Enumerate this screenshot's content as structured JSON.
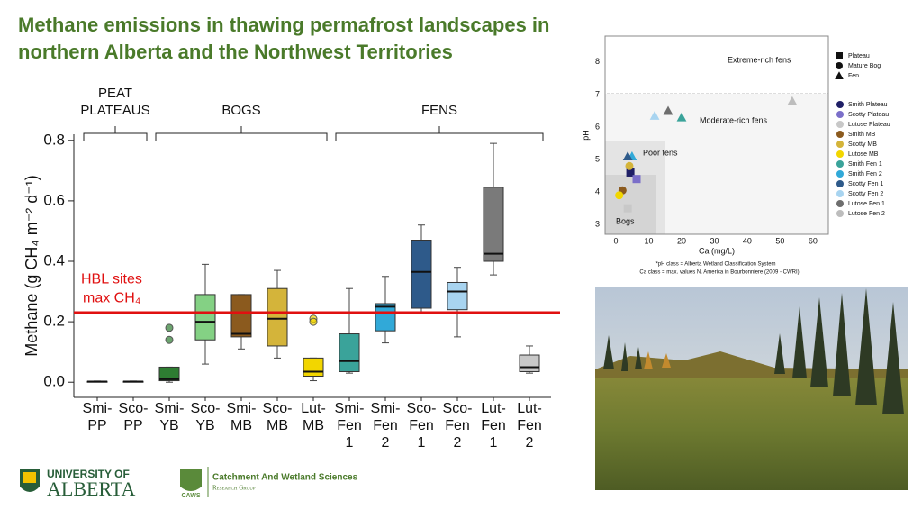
{
  "title": [
    "Methane emissions in thawing permafrost landscapes in",
    "northern Alberta and the Northwest Territories"
  ],
  "chart_data": [
    {
      "type": "box",
      "y_label": "Methane (g CH₄ m⁻² d⁻¹)",
      "categories": [
        [
          "Smi-",
          "PP"
        ],
        [
          "Sco-",
          "PP"
        ],
        [
          "Smi-",
          "YB"
        ],
        [
          "Sco-",
          "YB"
        ],
        [
          "Smi-",
          "MB"
        ],
        [
          "Sco-",
          "MB"
        ],
        [
          "Lut-",
          "MB"
        ],
        [
          "Smi-",
          "Fen",
          "1"
        ],
        [
          "Smi-",
          "Fen",
          "2"
        ],
        [
          "Sco-",
          "Fen",
          "1"
        ],
        [
          "Sco-",
          "Fen",
          "2"
        ],
        [
          "Lut-",
          "Fen",
          "1"
        ],
        [
          "Lut-",
          "Fen",
          "2"
        ]
      ],
      "boxes": [
        {
          "min": 0.001,
          "q1": 0.001,
          "median": 0.002,
          "q3": 0.003,
          "max": 0.004,
          "outliers": [],
          "color": "#1f1f66"
        },
        {
          "min": 0.001,
          "q1": 0.001,
          "median": 0.002,
          "q3": 0.003,
          "max": 0.004,
          "outliers": [],
          "color": "#7b6fc9"
        },
        {
          "min": 0.0,
          "q1": 0.005,
          "median": 0.01,
          "q3": 0.05,
          "max": 0.05,
          "outliers": [
            0.18,
            0.14
          ],
          "color": "#2e7d32"
        },
        {
          "min": 0.06,
          "q1": 0.14,
          "median": 0.2,
          "q3": 0.29,
          "max": 0.39,
          "outliers": [],
          "color": "#84d184"
        },
        {
          "min": 0.11,
          "q1": 0.15,
          "median": 0.16,
          "q3": 0.29,
          "max": 0.29,
          "outliers": [],
          "color": "#8b5a1e"
        },
        {
          "min": 0.08,
          "q1": 0.12,
          "median": 0.21,
          "q3": 0.31,
          "max": 0.37,
          "outliers": [],
          "color": "#d4b43a"
        },
        {
          "min": 0.005,
          "q1": 0.02,
          "median": 0.035,
          "q3": 0.08,
          "max": 0.08,
          "outliers": [
            0.21,
            0.2
          ],
          "color": "#f2d600"
        },
        {
          "min": 0.03,
          "q1": 0.035,
          "median": 0.07,
          "q3": 0.16,
          "max": 0.31,
          "outliers": [],
          "color": "#3aa39a"
        },
        {
          "min": 0.13,
          "q1": 0.17,
          "median": 0.25,
          "q3": 0.26,
          "max": 0.35,
          "outliers": [],
          "color": "#31a9d8"
        },
        {
          "min": 0.23,
          "q1": 0.245,
          "median": 0.365,
          "q3": 0.47,
          "max": 0.52,
          "outliers": [],
          "color": "#2e5a8a"
        },
        {
          "min": 0.15,
          "q1": 0.24,
          "median": 0.3,
          "q3": 0.33,
          "max": 0.38,
          "outliers": [],
          "color": "#a8d4f0"
        },
        {
          "min": 0.355,
          "q1": 0.4,
          "median": 0.425,
          "q3": 0.645,
          "max": 0.79,
          "outliers": [],
          "color": "#7a7a7a"
        },
        {
          "min": 0.03,
          "q1": 0.035,
          "median": 0.05,
          "q3": 0.09,
          "max": 0.12,
          "outliers": [],
          "color": "#c8c8c8"
        }
      ],
      "ylim": [
        -0.05,
        0.85
      ],
      "yticks": [
        {
          "value": 0,
          "label": "0.0"
        },
        0.2,
        0.4,
        0.6,
        0.8
      ],
      "groups": [
        [
          "PEAT",
          "PLATEAUS"
        ],
        [
          "BOGS"
        ],
        [
          "FENS"
        ]
      ],
      "reference_line": {
        "value": 0.23,
        "color": "#e01010",
        "label": [
          "HBL sites",
          "max CH₄"
        ]
      }
    },
    {
      "type": "scatter",
      "x_label": "Ca (mg/L)",
      "y_label": "pH",
      "xlim": [
        -3.3,
        64.7
      ],
      "ylim": [
        2.7,
        8.8
      ],
      "xticks": [
        0,
        10,
        20,
        30,
        40,
        50,
        60
      ],
      "yticks": [
        3,
        4,
        5,
        6,
        7,
        8
      ],
      "regions": [
        "Bogs",
        "Poor fens",
        "Moderate-rich fens",
        "Extreme-rich fens"
      ],
      "shapes": [
        {
          "name": "Plateau",
          "shape": "square"
        },
        {
          "name": "Mature Bog",
          "shape": "circle"
        },
        {
          "name": "Fen",
          "shape": "triangle"
        }
      ],
      "series": [
        {
          "name": "Smith Plateau",
          "color": "#1f1f66",
          "shape": "square",
          "x": [
            4.4
          ],
          "values": [
            4.6
          ]
        },
        {
          "name": "Scotty Plateau",
          "color": "#7b6fc9",
          "shape": "square",
          "x": [
            6.3
          ],
          "values": [
            4.4
          ]
        },
        {
          "name": "Lutose Plateau",
          "color": "#c8c8c8",
          "shape": "square",
          "x": [
            3.6
          ],
          "values": [
            3.5
          ]
        },
        {
          "name": "Smith MB",
          "color": "#8b5a1e",
          "shape": "circle",
          "x": [
            2.0
          ],
          "values": [
            4.05
          ]
        },
        {
          "name": "Scotty MB",
          "color": "#d4b43a",
          "shape": "circle",
          "x": [
            4.1
          ],
          "values": [
            4.8
          ]
        },
        {
          "name": "Lutose MB",
          "color": "#f2d600",
          "shape": "circle",
          "x": [
            1.0
          ],
          "values": [
            3.9
          ]
        },
        {
          "name": "Smith Fen 1",
          "color": "#3aa39a",
          "shape": "triangle",
          "x": [
            20
          ],
          "values": [
            6.3
          ]
        },
        {
          "name": "Smith Fen 2",
          "color": "#31a9d8",
          "shape": "triangle",
          "x": [
            4.9
          ],
          "values": [
            5.1
          ]
        },
        {
          "name": "Scotty Fen 1",
          "color": "#2e5a8a",
          "shape": "triangle",
          "x": [
            3.6
          ],
          "values": [
            5.1
          ]
        },
        {
          "name": "Scotty Fen 2",
          "color": "#a8d4f0",
          "shape": "triangle",
          "x": [
            11.8
          ],
          "values": [
            6.35
          ]
        },
        {
          "name": "Lutose Fen 1",
          "color": "#6e6e6e",
          "shape": "triangle",
          "x": [
            15.9
          ],
          "values": [
            6.5
          ]
        },
        {
          "name": "Lutose Fen 2",
          "color": "#bdbdbd",
          "shape": "triangle",
          "x": [
            53.7
          ],
          "values": [
            6.8
          ]
        }
      ],
      "notes": [
        "*pH class = Alberta Wetland Classification System",
        "Ca class = max. values N. America in Bourbonniere (2009 - CWRI)"
      ]
    }
  ],
  "logos": {
    "university": [
      "UNIVERSITY OF",
      "ALBERTA"
    ],
    "caws": {
      "abbr": "CAWS",
      "name": "Catchment And Wetland Sciences",
      "sub": "Research Group"
    }
  }
}
